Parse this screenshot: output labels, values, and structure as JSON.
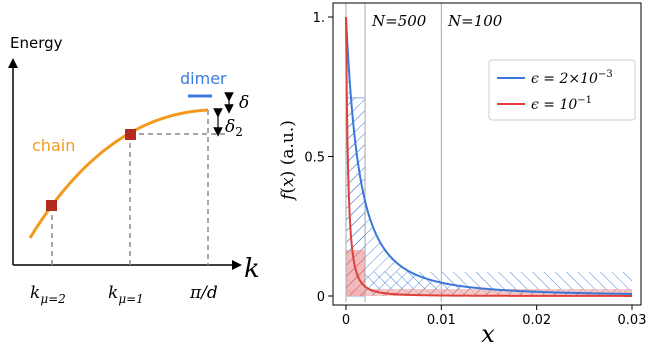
{
  "left_panel": {
    "y_axis_label": "Energy",
    "x_axis_label": "k",
    "chain_label": "chain",
    "dimer_label": "dimer",
    "delta_label": "δ",
    "delta2_label": "δ",
    "delta2_sub": "2",
    "ticks": [
      {
        "main": "k",
        "sub": "μ=2"
      },
      {
        "main": "k",
        "sub": "μ=1"
      },
      {
        "main": "π/d",
        "sub": ""
      }
    ],
    "colors": {
      "chain": "#f39a1e",
      "dimer": "#3b7ddd",
      "marker": "#b22a20",
      "axis": "#000000",
      "guide": "#888888"
    }
  },
  "chart_data": {
    "type": "line",
    "xlabel": "x",
    "ylabel": "f(x) (a.u.)",
    "xlim": [
      0,
      0.03
    ],
    "ylim": [
      0,
      1
    ],
    "x_ticks": [
      "0",
      "0.01",
      "0.02",
      "0.03"
    ],
    "y_ticks": [
      "0",
      "0.5",
      "1."
    ],
    "series": [
      {
        "name": "ϵ = 2×10",
        "exp": "−3",
        "color": "#3a77d8",
        "epsilon": 0.002
      },
      {
        "name": "ϵ = 10",
        "exp": "−1",
        "color": "#e0403a",
        "epsilon": 0.1
      }
    ],
    "vlines": [
      {
        "x": 0.002,
        "label": "N=500"
      },
      {
        "x": 0.01,
        "label": "N=100"
      }
    ],
    "legend_position": "top-right"
  }
}
